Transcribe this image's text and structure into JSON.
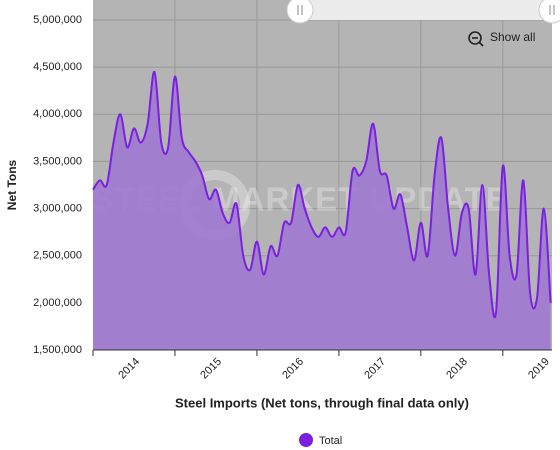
{
  "chart_data": {
    "type": "area",
    "x_title": "Steel Imports (Net tons, through final data only)",
    "y_title": "Net Tons",
    "watermark": "STEEL MARKET UPDATE",
    "button": "Show all",
    "x": [
      2014,
      2014.083,
      2014.167,
      2014.25,
      2014.333,
      2014.417,
      2014.5,
      2014.583,
      2014.667,
      2014.75,
      2014.833,
      2014.917,
      2015,
      2015.083,
      2015.167,
      2015.25,
      2015.333,
      2015.417,
      2015.5,
      2015.583,
      2015.667,
      2015.75,
      2015.833,
      2015.917,
      2016,
      2016.083,
      2016.167,
      2016.25,
      2016.333,
      2016.417,
      2016.5,
      2016.583,
      2016.667,
      2016.75,
      2016.833,
      2016.917,
      2017,
      2017.083,
      2017.167,
      2017.25,
      2017.333,
      2017.417,
      2017.5,
      2017.583,
      2017.667,
      2017.75,
      2017.833,
      2017.917,
      2018,
      2018.083,
      2018.167,
      2018.25,
      2018.333,
      2018.417,
      2018.5,
      2018.583,
      2018.667,
      2018.75,
      2018.833,
      2018.917,
      2019,
      2019.083,
      2019.167,
      2019.25,
      2019.333,
      2019.417,
      2019.5,
      2019.583
    ],
    "series": [
      {
        "name": "Total",
        "color": "#7b1fe0",
        "fill": "#a17bd1",
        "values": [
          3200000,
          3300000,
          3250000,
          3700000,
          4000000,
          3650000,
          3850000,
          3700000,
          3900000,
          4450000,
          3700000,
          3650000,
          4400000,
          3750000,
          3600000,
          3500000,
          3350000,
          3100000,
          3200000,
          2950000,
          2850000,
          3050000,
          2500000,
          2350000,
          2650000,
          2300000,
          2600000,
          2500000,
          2850000,
          2850000,
          3250000,
          3000000,
          2800000,
          2700000,
          2800000,
          2700000,
          2800000,
          2750000,
          3400000,
          3350000,
          3500000,
          3900000,
          3400000,
          3350000,
          3000000,
          3150000,
          2800000,
          2450000,
          2850000,
          2500000,
          3350000,
          3750000,
          3000000,
          2500000,
          2950000,
          3000000,
          2300000,
          3250000,
          2300000,
          1900000,
          3450000,
          2500000,
          2300000,
          3300000,
          2100000,
          2050000,
          3000000,
          2000000
        ]
      }
    ],
    "xlim": [
      2014,
      2019.6
    ],
    "xticks": [
      {
        "value": 2014.5,
        "label": "2014"
      },
      {
        "value": 2015.5,
        "label": "2015"
      },
      {
        "value": 2016.5,
        "label": "2016"
      },
      {
        "value": 2017.5,
        "label": "2017"
      },
      {
        "value": 2018.5,
        "label": "2018"
      },
      {
        "value": 2019.5,
        "label": "2019"
      }
    ],
    "xgrid": [
      2015,
      2016,
      2017,
      2018,
      2019
    ],
    "ylim": [
      1500000,
      5000000
    ],
    "yticks": [
      {
        "value": 1500000,
        "label": "1,500,000"
      },
      {
        "value": 2000000,
        "label": "2,000,000"
      },
      {
        "value": 2500000,
        "label": "2,500,000"
      },
      {
        "value": 3000000,
        "label": "3,000,000"
      },
      {
        "value": 3500000,
        "label": "3,500,000"
      },
      {
        "value": 4000000,
        "label": "4,000,000"
      },
      {
        "value": 4500000,
        "label": "4,500,000"
      },
      {
        "value": 5000000,
        "label": "5,000,000"
      }
    ],
    "grid": true,
    "background": "#b4b4b4",
    "legend": "bottom"
  }
}
